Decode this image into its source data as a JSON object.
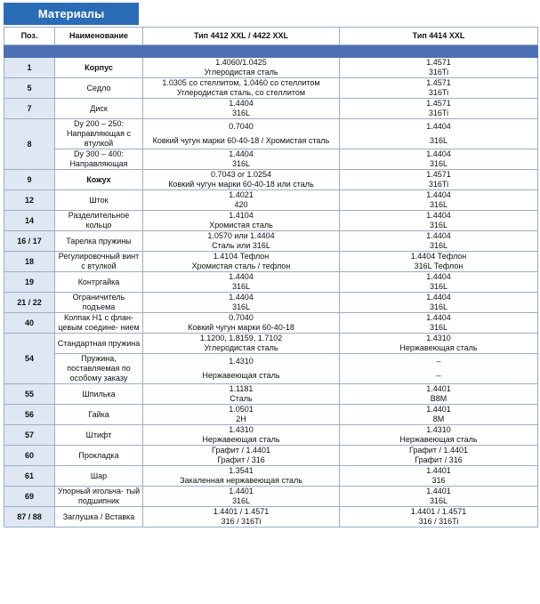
{
  "title": "Материалы",
  "headers": {
    "pos": "Поз.",
    "name": "Наименование",
    "col1": "Тип 4412 XXL / 4422 XXL",
    "col2": "Тип 4414 XXL"
  },
  "rows": [
    {
      "pos": "1",
      "name": "Корпус",
      "bold": true,
      "c1a": "1.4060/1.0425",
      "c1b": "Углеродистая сталь",
      "c2a": "1.4571",
      "c2b": "316Ti"
    },
    {
      "pos": "5",
      "name": "Седло",
      "c1a": "1.0305 со стеллитом, 1.0460 со стеллитом",
      "c1b": "Углеродистая сталь, со стеллитом",
      "c2a": "1.4571",
      "c2b": "316Ti"
    },
    {
      "pos": "7",
      "name": "Диск",
      "c1a": "1.4404",
      "c1b": "316L",
      "c2a": "1.4571",
      "c2b": "316Ti"
    },
    {
      "pos": "8",
      "name": "Dy 200 – 250: Направляющая с втулкой",
      "c1a": "0.7040",
      "c1b": "Ковкий чугун марки 60-40-18 / Хромистая сталь",
      "c2a": "1.4404",
      "c2b": "316L"
    },
    {
      "pos": "",
      "name": "Dy 300 – 400: Направляющая",
      "c1a": "1.4404",
      "c1b": "316L",
      "c2a": "1.4404",
      "c2b": "316L"
    },
    {
      "pos": "9",
      "name": "Кожух",
      "bold": true,
      "c1a": "0.7043 or 1.0254",
      "c1b": "Ковкий чугун марки 60-40-18 или сталь",
      "c2a": "1.4571",
      "c2b": "316Ti"
    },
    {
      "pos": "12",
      "name": "Шток",
      "c1a": "1.4021",
      "c1b": "420",
      "c2a": "1.4404",
      "c2b": "316L"
    },
    {
      "pos": "14",
      "name": "Разделительное кольцо",
      "c1a": "1.4104",
      "c1b": "Хромистая сталь",
      "c2a": "1.4404",
      "c2b": "316L"
    },
    {
      "pos": "16 / 17",
      "name": "Тарелка пружины",
      "c1a": "1.0570 или 1.4404",
      "c1b": "Сталь или 316L",
      "c2a": "1.4404",
      "c2b": "316L"
    },
    {
      "pos": "18",
      "name": "Регулировочный винт с втулкой",
      "c1a": "1.4104 Тефлон",
      "c1b": "Хромистая сталь / тефлон",
      "c2a": "1.4404 Тефлон",
      "c2b": "316L Тефлон"
    },
    {
      "pos": "19",
      "name": "Контргайка",
      "c1a": "1.4404",
      "c1b": "316L",
      "c2a": "1.4404",
      "c2b": "316L"
    },
    {
      "pos": "21 / 22",
      "name": "Ограничитель подъема",
      "c1a": "1.4404",
      "c1b": "316L",
      "c2a": "1.4404",
      "c2b": "316L"
    },
    {
      "pos": "40",
      "name": "Колпак H1 с флан- цевым соедине- нием",
      "c1a": "0.7040",
      "c1b": "Ковкий чугун марки 60-40-18",
      "c2a": "1.4404",
      "c2b": "316L"
    },
    {
      "pos": "54",
      "name": "Стандартная пружина",
      "c1a": "1.1200, 1.8159, 1.7102",
      "c1b": "Углеродистая сталь",
      "c2a": "1.4310",
      "c2b": "Нержавеющая сталь"
    },
    {
      "pos": "",
      "name": "Пружина, поставляемая по особому заказу",
      "c1a": "1.4310",
      "c1b": "Нержавеющая сталь",
      "c2a": "–",
      "c2b": "–"
    },
    {
      "pos": "55",
      "name": "Шпилька",
      "c1a": "1.1181",
      "c1b": "Сталь",
      "c2a": "1.4401",
      "c2b": "B8M"
    },
    {
      "pos": "56",
      "name": "Гайка",
      "c1a": "1.0501",
      "c1b": "2H",
      "c2a": "1.4401",
      "c2b": "8M"
    },
    {
      "pos": "57",
      "name": "Штифт",
      "c1a": "1.4310",
      "c1b": "Нержавеющая сталь",
      "c2a": "1.4310",
      "c2b": "Нержавеющая сталь"
    },
    {
      "pos": "60",
      "name": "Прокладка",
      "c1a": "Графит / 1.4401",
      "c1b": "Графит / 316",
      "c2a": "Графит / 1.4401",
      "c2b": "Графит / 316"
    },
    {
      "pos": "61",
      "name": "Шар",
      "c1a": "1.3541",
      "c1b": "Закаленная нержавеющая сталь",
      "c2a": "1.4401",
      "c2b": "316"
    },
    {
      "pos": "69",
      "name": "Упорный игольча- тый подшипник",
      "c1a": "1.4401",
      "c1b": "316L",
      "c2a": "1.4401",
      "c2b": "316L"
    },
    {
      "pos": "87 / 88",
      "name": "Заглушка / Вставка",
      "c1a": "1.4401 / 1.4571",
      "c1b": "316 / 316Ti",
      "c2a": "1.4401 / 1.4571",
      "c2b": "316 / 316Ti"
    }
  ]
}
